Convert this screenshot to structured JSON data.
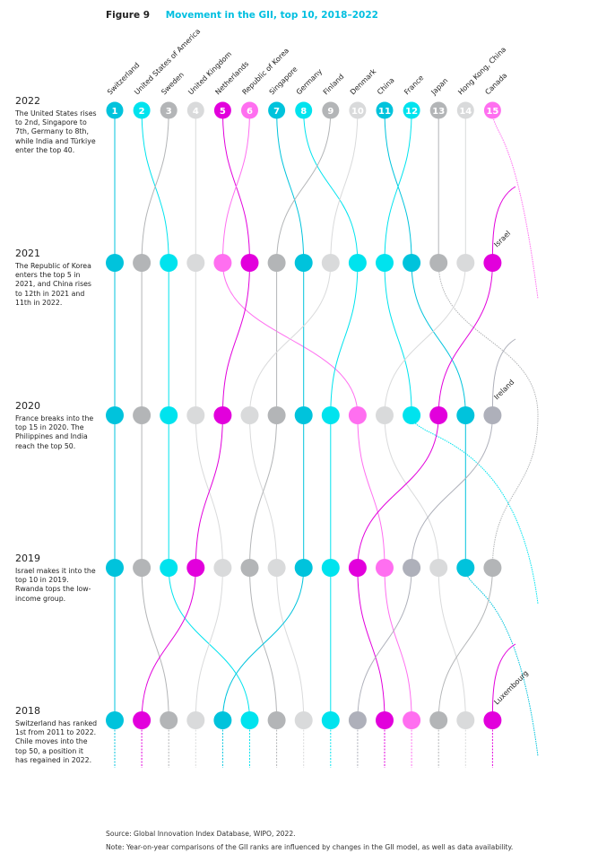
{
  "figure": {
    "number": "Figure 9",
    "title": "Movement in the GII, top 10, 2018–2022"
  },
  "years": [
    {
      "year": "2022",
      "text": "The United States rises to 2nd, Singapore to 7th, Germany to 8th, while India and Türkiye enter the top 40."
    },
    {
      "year": "2021",
      "text": "The Republic of Korea enters the top 5 in 2021, and China rises to 12th in 2021 and 11th in 2022."
    },
    {
      "year": "2020",
      "text": "France breaks into the top 15 in 2020. The Philippines and India reach the top 50."
    },
    {
      "year": "2019",
      "text": "Israel makes it into the top 10 in 2019. Rwanda tops the low-income group."
    },
    {
      "year": "2018",
      "text": "Switzerland has ranked 1st from 2011 to 2022. Chile moves into the top 50, a position it has regained in 2022."
    }
  ],
  "source": "Source: Global Innovation Index Database, WIPO, 2022.",
  "note": "Note: Year-on-year comparisons of the GII ranks are influenced by changes in the GII model, as well as data availability.",
  "chart_data": {
    "type": "bump",
    "title": "Movement in the GII, top 10, 2018–2022",
    "rank_range": [
      1,
      15
    ],
    "years": [
      "2022",
      "2021",
      "2020",
      "2019",
      "2018"
    ],
    "rankings": {
      "2022": [
        "Switzerland",
        "United States of America",
        "Sweden",
        "United Kingdom",
        "Netherlands",
        "Republic of Korea",
        "Singapore",
        "Germany",
        "Finland",
        "Denmark",
        "China",
        "France",
        "Japan",
        "Hong Kong, China",
        "Canada"
      ],
      "2021": [
        "Switzerland",
        "Sweden",
        "United States of America",
        "United Kingdom",
        "Republic of Korea",
        "Netherlands",
        "Finland",
        "Singapore",
        "Denmark",
        "Germany",
        "France",
        "China",
        "Japan",
        "Hong Kong, China",
        "Israel"
      ],
      "2020": [
        "Switzerland",
        "Sweden",
        "United States of America",
        "United Kingdom",
        "Netherlands",
        "Denmark",
        "Finland",
        "Singapore",
        "Germany",
        "Republic of Korea",
        "Hong Kong, China",
        "France",
        "Israel",
        "China",
        "Ireland"
      ],
      "2019": [
        "Switzerland",
        "Sweden",
        "United States of America",
        "Netherlands",
        "United Kingdom",
        "Finland",
        "Denmark",
        "Singapore",
        "Germany",
        "Israel",
        "Republic of Korea",
        "Ireland",
        "Hong Kong, China",
        "China",
        "Japan"
      ],
      "2018": [
        "Switzerland",
        "Netherlands",
        "Sweden",
        "United Kingdom",
        "Singapore",
        "United States of America",
        "Finland",
        "Denmark",
        "Germany",
        "Ireland",
        "Israel",
        "Republic of Korea",
        "Japan",
        "Hong Kong, China",
        "Luxembourg"
      ]
    },
    "entrant_labels": [
      {
        "country": "Israel",
        "year": "2021"
      },
      {
        "country": "Ireland",
        "year": "2020"
      },
      {
        "country": "Luxembourg",
        "year": "2018"
      }
    ],
    "colors": {
      "Switzerland": "#00c3dc",
      "United States of America": "#00e3ee",
      "Sweden": "#b3b5b7",
      "United Kingdom": "#d9dadb",
      "Netherlands": "#e200dc",
      "Republic of Korea": "#ff6ff0",
      "Singapore": "#00c3dc",
      "Germany": "#00e3ee",
      "Finland": "#b3b5b7",
      "Denmark": "#d9dadb",
      "China": "#00c3dc",
      "France": "#00e3ee",
      "Japan": "#b3b5b7",
      "Hong Kong, China": "#d9dadb",
      "Canada": "#ff6ff0",
      "Israel": "#e200dc",
      "Ireland": "#aeb0ba",
      "Luxembourg": "#e200dc"
    }
  }
}
